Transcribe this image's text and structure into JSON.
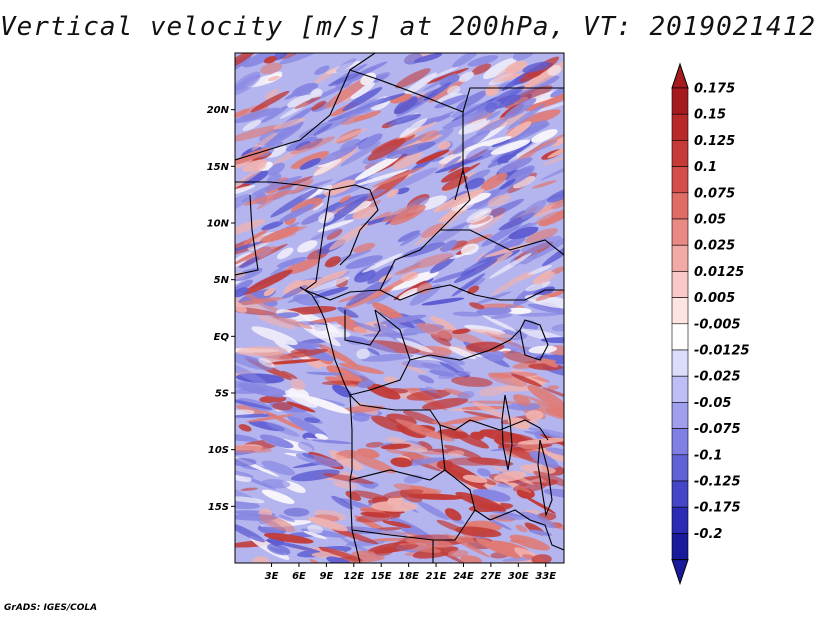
{
  "title": "Vertical velocity [m/s] at 200hPa, VT: 2019021412",
  "credit": "GrADS: IGES/COLA",
  "map": {
    "lon_range": [
      -1,
      35
    ],
    "lat_range": [
      -20,
      25
    ],
    "lat_ticks": [
      {
        "value": 20,
        "label": "20N"
      },
      {
        "value": 15,
        "label": "15N"
      },
      {
        "value": 10,
        "label": "10N"
      },
      {
        "value": 5,
        "label": "5N"
      },
      {
        "value": 0,
        "label": "EQ"
      },
      {
        "value": -5,
        "label": "5S"
      },
      {
        "value": -10,
        "label": "10S"
      },
      {
        "value": -15,
        "label": "15S"
      }
    ],
    "lon_ticks": [
      {
        "value": 3,
        "label": "3E"
      },
      {
        "value": 6,
        "label": "6E"
      },
      {
        "value": 9,
        "label": "9E"
      },
      {
        "value": 12,
        "label": "12E"
      },
      {
        "value": 15,
        "label": "15E"
      },
      {
        "value": 18,
        "label": "18E"
      },
      {
        "value": 21,
        "label": "21E"
      },
      {
        "value": 24,
        "label": "24E"
      },
      {
        "value": 27,
        "label": "27E"
      },
      {
        "value": 30,
        "label": "30E"
      },
      {
        "value": 33,
        "label": "33E"
      }
    ]
  },
  "colorbar": {
    "levels": [
      {
        "label": "0.175",
        "color": "#a51a1e"
      },
      {
        "label": "0.15",
        "color": "#b82a2a"
      },
      {
        "label": "0.125",
        "color": "#c63b38"
      },
      {
        "label": "0.1",
        "color": "#d44f4a"
      },
      {
        "label": "0.075",
        "color": "#e06c66"
      },
      {
        "label": "0.05",
        "color": "#ea8a84"
      },
      {
        "label": "0.025",
        "color": "#f2aaa5"
      },
      {
        "label": "0.0125",
        "color": "#f8c9c6"
      },
      {
        "label": "0.005",
        "color": "#fde4e2"
      },
      {
        "label": "-0.005",
        "color": "#ffffff"
      },
      {
        "label": "-0.0125",
        "color": "#dcdcfb"
      },
      {
        "label": "-0.025",
        "color": "#bebef5"
      },
      {
        "label": "-0.05",
        "color": "#9f9fee"
      },
      {
        "label": "-0.075",
        "color": "#8080e4"
      },
      {
        "label": "-0.1",
        "color": "#6262d8"
      },
      {
        "label": "-0.125",
        "color": "#4545c8"
      },
      {
        "label": "-0.175",
        "color": "#2b2bb5"
      },
      {
        "label": "-0.2",
        "color": "#1a1a9c"
      }
    ],
    "over_color": "#a51a1e",
    "under_color": "#1a1a9c",
    "bottom_color": "#2020a8"
  },
  "field_colors": {
    "background": "#b4b4ef",
    "strong_red": "#c23a36",
    "medium_red": "#e07a74",
    "light_red": "#f2b3ae",
    "white": "#f7f4fb",
    "strong_blue": "#5d5dd2",
    "medium_blue": "#8686e2"
  }
}
